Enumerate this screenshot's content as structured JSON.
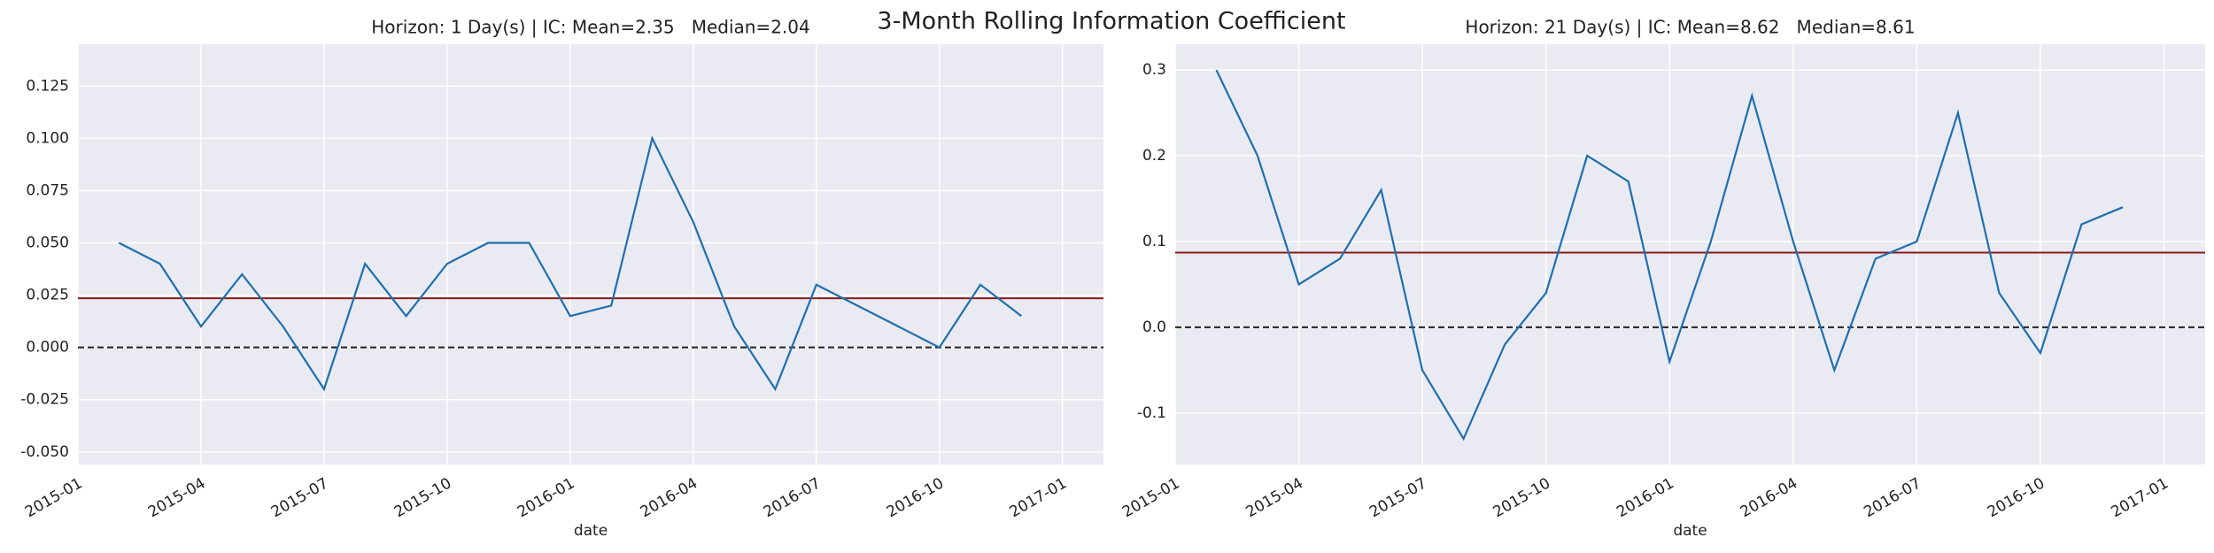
{
  "title": "3-Month Rolling Information Coefficient",
  "chart_data": [
    {
      "type": "line",
      "title": "Horizon: 1 Day(s) | IC: Mean=2.35   Median=2.04",
      "xlabel": "date",
      "x": [
        "2015-02",
        "2015-03",
        "2015-04",
        "2015-05",
        "2015-06",
        "2015-07",
        "2015-08",
        "2015-09",
        "2015-10",
        "2015-11",
        "2015-12",
        "2016-01",
        "2016-02",
        "2016-03",
        "2016-04",
        "2016-05",
        "2016-06",
        "2016-07",
        "2016-08",
        "2016-09",
        "2016-10",
        "2016-11",
        "2016-12"
      ],
      "values": [
        0.05,
        0.04,
        0.01,
        0.035,
        0.01,
        -0.02,
        0.04,
        0.015,
        0.04,
        0.05,
        0.05,
        0.015,
        0.02,
        0.1,
        0.06,
        0.01,
        -0.02,
        0.03,
        0.02,
        0.01,
        0.0,
        0.03,
        0.015
      ],
      "color": "#1f6fad",
      "xlim": [
        "2015-01",
        "2017-02"
      ],
      "xticks": [
        "2015-01",
        "2015-04",
        "2015-07",
        "2015-10",
        "2016-01",
        "2016-04",
        "2016-07",
        "2016-10",
        "2017-01"
      ],
      "ylim": [
        -0.056,
        0.145
      ],
      "yticks": [
        {
          "value": -0.05,
          "label": "-0.050"
        },
        -0.025,
        {
          "value": 0,
          "label": "0.000"
        },
        0.025,
        {
          "value": 0.05,
          "label": "0.050"
        },
        0.075,
        {
          "value": 0.1,
          "label": "0.100"
        },
        0.125
      ],
      "reference_lines": [
        {
          "value": 0.0235,
          "color": "#8b1a1a",
          "style": "solid"
        },
        {
          "value": 0,
          "color": "#222222",
          "style": "dashed"
        }
      ],
      "grid": true
    },
    {
      "type": "line",
      "title": "Horizon: 21 Day(s) | IC: Mean=8.62   Median=8.61",
      "xlabel": "date",
      "x": [
        "2015-02",
        "2015-03",
        "2015-04",
        "2015-05",
        "2015-06",
        "2015-07",
        "2015-08",
        "2015-09",
        "2015-10",
        "2015-11",
        "2015-12",
        "2016-01",
        "2016-02",
        "2016-03",
        "2016-04",
        "2016-05",
        "2016-06",
        "2016-07",
        "2016-08",
        "2016-09",
        "2016-10",
        "2016-11",
        "2016-12"
      ],
      "values": [
        0.3,
        0.2,
        0.05,
        0.08,
        0.16,
        -0.05,
        -0.13,
        -0.02,
        0.04,
        0.2,
        0.17,
        -0.04,
        0.1,
        0.27,
        0.1,
        -0.05,
        0.08,
        0.1,
        0.25,
        0.04,
        -0.03,
        0.12,
        0.14
      ],
      "color": "#1f6fad",
      "xlim": [
        "2015-01",
        "2017-02"
      ],
      "xticks": [
        "2015-01",
        "2015-04",
        "2015-07",
        "2015-10",
        "2016-01",
        "2016-04",
        "2016-07",
        "2016-10",
        "2017-01"
      ],
      "ylim": [
        -0.16,
        0.33
      ],
      "yticks": [
        -0.1,
        {
          "value": 0,
          "label": "0.0"
        },
        0.1,
        0.2,
        0.3
      ],
      "reference_lines": [
        {
          "value": 0.087,
          "color": "#8b1a1a",
          "style": "solid"
        },
        {
          "value": 0,
          "color": "#222222",
          "style": "dashed"
        }
      ],
      "grid": true
    }
  ]
}
